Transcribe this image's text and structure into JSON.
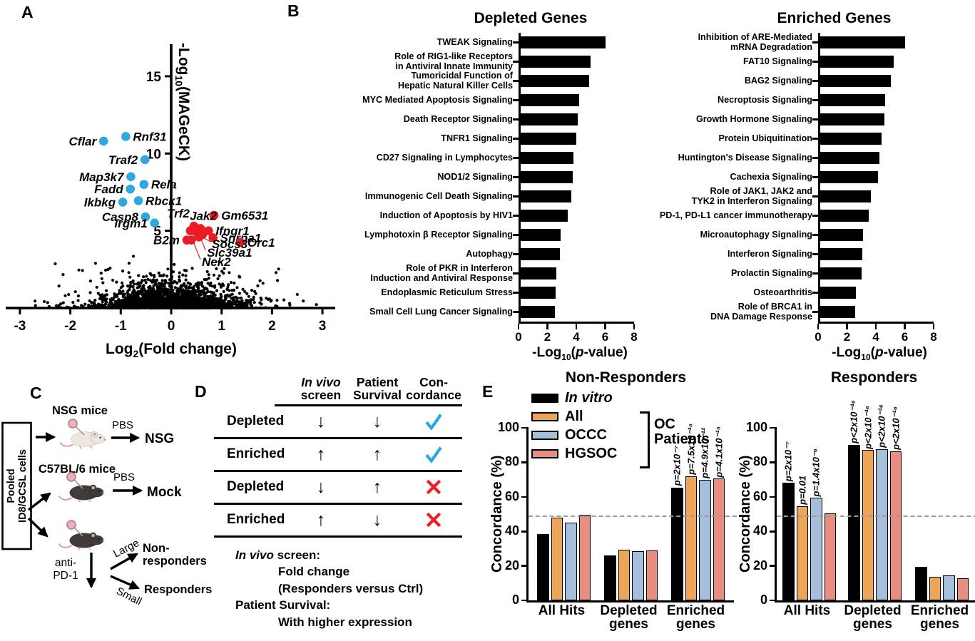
{
  "panels": {
    "a": "A",
    "b": "B",
    "c": "C",
    "d": "D",
    "e": "E"
  },
  "chart_data": [
    {
      "id": "volcano",
      "type": "scatter",
      "title": "",
      "xlabel": "Log2(Fold change)",
      "ylabel": "-Log10(MAGeCK)",
      "xlim": [
        -3,
        3
      ],
      "ylim": [
        0,
        15
      ],
      "xticks": [
        -3,
        -2,
        -1,
        0,
        1,
        2,
        3
      ],
      "yticks": [
        5,
        10,
        15
      ],
      "depleted_color": "#2FA8E1",
      "enriched_color": "#EB1C24",
      "point_color": "#000000",
      "background_points_description": "dense unlabeled gene cloud, Log2FC roughly -3..3, -Log10(MAGeCK) mostly < 4",
      "depleted_genes": [
        {
          "name": "Rnf31",
          "x": -0.9,
          "y": 11.1,
          "label": "r"
        },
        {
          "name": "Cflar",
          "x": -1.34,
          "y": 10.8,
          "label": "l"
        },
        {
          "name": "Traf2",
          "x": -0.52,
          "y": 9.6,
          "label": "l"
        },
        {
          "name": "Map3k7",
          "x": -0.8,
          "y": 8.5,
          "label": "l"
        },
        {
          "name": "Rela",
          "x": -0.54,
          "y": 8.0,
          "label": "r"
        },
        {
          "name": "Fadd",
          "x": -0.81,
          "y": 7.7,
          "label": "l"
        },
        {
          "name": "Rbck1",
          "x": -0.65,
          "y": 6.95,
          "label": "r"
        },
        {
          "name": "Ikbkg",
          "x": -0.96,
          "y": 6.85,
          "label": "l"
        },
        {
          "name": "Casp8",
          "x": -0.51,
          "y": 5.9,
          "label": "l"
        },
        {
          "name": "Irgm1",
          "x": -0.33,
          "y": 5.5,
          "label": "l"
        }
      ],
      "enriched_genes": [
        {
          "name": "Gm6531",
          "x": 0.85,
          "y": 6.0,
          "label": "r"
        },
        {
          "name": "Trf2",
          "x": 0.45,
          "y": 5.3,
          "label": "la"
        },
        {
          "name": "Jak2",
          "x": 0.58,
          "y": 5.15,
          "label": "a"
        },
        {
          "name": "Ifngr1",
          "x": 0.74,
          "y": 5.0,
          "label": "r"
        },
        {
          "name": "Snrpa1",
          "x": 0.83,
          "y": 4.55,
          "label": "r"
        },
        {
          "name": "B2m",
          "x": 0.31,
          "y": 4.4,
          "label": "l"
        },
        {
          "name": "Orc1",
          "x": 1.37,
          "y": 4.25,
          "label": "r"
        },
        {
          "name": "Socs3",
          "x": 0.5,
          "y": 4.9,
          "label": "leader",
          "lx": 0.78,
          "ly": 4.05
        },
        {
          "name": "Slc39a1",
          "x": 0.55,
          "y": 4.6,
          "label": "leader",
          "lx": 0.68,
          "ly": 3.5
        },
        {
          "name": "Nek2",
          "x": 0.4,
          "y": 4.4,
          "label": "leader",
          "lx": 0.58,
          "ly": 2.9
        }
      ],
      "extra_enriched_points": [
        [
          0.38,
          5.0
        ],
        [
          0.62,
          4.75
        ]
      ]
    },
    {
      "id": "depleted_pathways",
      "type": "bar",
      "orientation": "horizontal",
      "title": "Depleted Genes",
      "xlabel": "-Log10(p-value)",
      "xlim": [
        0,
        8
      ],
      "xticks": [
        0,
        2,
        4,
        6,
        8
      ],
      "bar_color": "#000000",
      "categories": [
        "TWEAK Signaling",
        "Role of RIG1-like Receptors\nin Antiviral Innate Immunity",
        "Tumoricidal Function of\nHepatic Natural Killer Cells",
        "MYC Mediated Apoptosis Signaling",
        "Death Receptor Signaling",
        "TNFR1 Signaling",
        "CD27 Signaling in Lymphocytes",
        "NOD1/2 Signaling",
        "Immunogenic Cell Death Signaling",
        "Induction of Apoptosis by HIV1",
        "Lymphotoxin β Receptor Signaling",
        "Autophagy",
        "Role of PKR in Interferon\nInduction and Antiviral Response",
        "Endoplasmic Reticulum Stress",
        "Small Cell Lung Cancer Signaling"
      ],
      "values": [
        5.9,
        4.85,
        4.75,
        4.05,
        3.95,
        3.85,
        3.65,
        3.6,
        3.5,
        3.25,
        2.75,
        2.7,
        2.45,
        2.4,
        2.35
      ]
    },
    {
      "id": "enriched_pathways",
      "type": "bar",
      "orientation": "horizontal",
      "title": "Enriched Genes",
      "xlabel": "-Log10(p-value)",
      "xlim": [
        0,
        8
      ],
      "xticks": [
        0,
        2,
        4,
        6,
        8
      ],
      "bar_color": "#000000",
      "categories": [
        "Inhibition of ARE-Mediated\nmRNA Degradation",
        "FAT10 Signaling",
        "BAG2 Signaling",
        "Necroptosis Signaling",
        "Growth Hormone Signaling",
        "Protein Ubiquitination",
        "Huntington's Disease Signaling",
        "Cachexia Signaling",
        "Role of JAK1, JAK2 and\nTYK2 in Interferon Signaling",
        "PD-1, PD-L1 cancer immunotherapy",
        "Microautophagy Signaling",
        "Interferon Signaling",
        "Prolactin Signaling",
        "Osteoarthritis",
        "Role of BRCA1 in\nDNA Damage Response"
      ],
      "values": [
        5.9,
        5.1,
        4.9,
        4.5,
        4.45,
        4.25,
        4.1,
        4.0,
        3.5,
        3.35,
        2.95,
        2.9,
        2.85,
        2.45,
        2.4
      ]
    },
    {
      "id": "concordance_non_responders",
      "type": "grouped_bar",
      "title": "Non-Responders",
      "ylabel": "Concordance (%)",
      "ylim": [
        0,
        100
      ],
      "yticks": [
        0,
        20,
        40,
        60,
        80,
        100
      ],
      "reference_line_pct": 48.5,
      "categories": [
        "All Hits",
        "Depleted\ngenes",
        "Enriched\ngenes"
      ],
      "series": [
        {
          "name": "In vitro",
          "color": "#000000",
          "values": [
            38.5,
            26,
            65.5
          ],
          "pvalues": [
            null,
            null,
            "p=2x10⁻⁷"
          ]
        },
        {
          "name": "All",
          "color": "#EBA458",
          "values": [
            48,
            29.5,
            72
          ],
          "pvalues": [
            null,
            null,
            "p=7.5x10⁻¹⁵"
          ]
        },
        {
          "name": "OCCC",
          "color": "#A6BEDB",
          "values": [
            45,
            28.5,
            70
          ],
          "pvalues": [
            null,
            null,
            "p=4.9x10⁻¹²"
          ]
        },
        {
          "name": "HGSOC",
          "color": "#E88D80",
          "values": [
            49.5,
            29,
            70.5
          ],
          "pvalues": [
            null,
            null,
            "p=4.1x10⁻¹⁵"
          ]
        }
      ]
    },
    {
      "id": "concordance_responders",
      "type": "grouped_bar",
      "title": "Responders",
      "ylabel": "Concordance (%)",
      "ylim": [
        0,
        100
      ],
      "yticks": [
        0,
        20,
        40,
        60,
        80,
        100
      ],
      "reference_line_pct": 48.5,
      "categories": [
        "All Hits",
        "Depleted\ngenes",
        "Enriched\ngenes"
      ],
      "series": [
        {
          "name": "In vitro",
          "color": "#000000",
          "values": [
            68,
            90,
            19.5
          ],
          "pvalues": [
            "p=2x10⁻⁷",
            "p<2x10⁻¹⁶",
            null
          ]
        },
        {
          "name": "All",
          "color": "#EBA458",
          "values": [
            54.5,
            87,
            13.5
          ],
          "pvalues": [
            "p=0.01",
            "p<2x10⁻¹⁶",
            null
          ]
        },
        {
          "name": "OCCC",
          "color": "#A6BEDB",
          "values": [
            59.5,
            87.5,
            14.5
          ],
          "pvalues": [
            "p=1.4x10⁻⁶",
            "p<2x10⁻¹⁶",
            null
          ]
        },
        {
          "name": "HGSOC",
          "color": "#E88D80",
          "values": [
            50.5,
            86.5,
            13
          ],
          "pvalues": [
            null,
            "p<2x10⁻¹⁶",
            null
          ]
        }
      ]
    }
  ],
  "legendE": {
    "items": [
      {
        "label": "In vitro",
        "color": "#000000",
        "italic": true
      },
      {
        "label": "All",
        "color": "#EBA458"
      },
      {
        "label": "OCCC",
        "color": "#A6BEDB"
      },
      {
        "label": "HGSOC",
        "color": "#E88D80"
      }
    ],
    "bracket_label": "OC\nPatients"
  },
  "panelC": {
    "box_line1": "Pooled",
    "box_line2": "ID8/GCSL cells",
    "nsg_mice_label": "NSG mice",
    "c57_mice_label": "C57BL/6 mice",
    "pbs1": "PBS",
    "nsg_target": "NSG",
    "pbs2": "PBS",
    "mock_target": "Mock",
    "treatment_line1": "anti-",
    "treatment_line2": "PD-1",
    "large_label": "Large",
    "small_label": "Small",
    "nonresp_line1": "Non-",
    "nonresp_line2": "responders",
    "responders_label": "Responders"
  },
  "panelD": {
    "col_screen_line1": "In vivo",
    "col_screen_line2": "screen",
    "col_survival": "Patient\nSurvival",
    "col_concordance": "Con-\ncordance",
    "check_color": "#2AA9E0",
    "cross_color": "#EC2027",
    "rows": [
      {
        "category": "Depleted",
        "in_vivo_screen": "down",
        "patient_survival": "down",
        "concordance": "concordant"
      },
      {
        "category": "Enriched",
        "in_vivo_screen": "up",
        "patient_survival": "up",
        "concordance": "concordant"
      },
      {
        "category": "Depleted",
        "in_vivo_screen": "down",
        "patient_survival": "up",
        "concordance": "discordant"
      },
      {
        "category": "Enriched",
        "in_vivo_screen": "up",
        "patient_survival": "down",
        "concordance": "discordant"
      }
    ],
    "notes": {
      "screen_italic": "In vivo",
      "screen_rest": " screen:",
      "screen_detail1": "Fold change",
      "screen_detail2": "(Responders versus Ctrl)",
      "survival_title": "Patient Survival:",
      "survival_detail": "With higher expression"
    }
  }
}
